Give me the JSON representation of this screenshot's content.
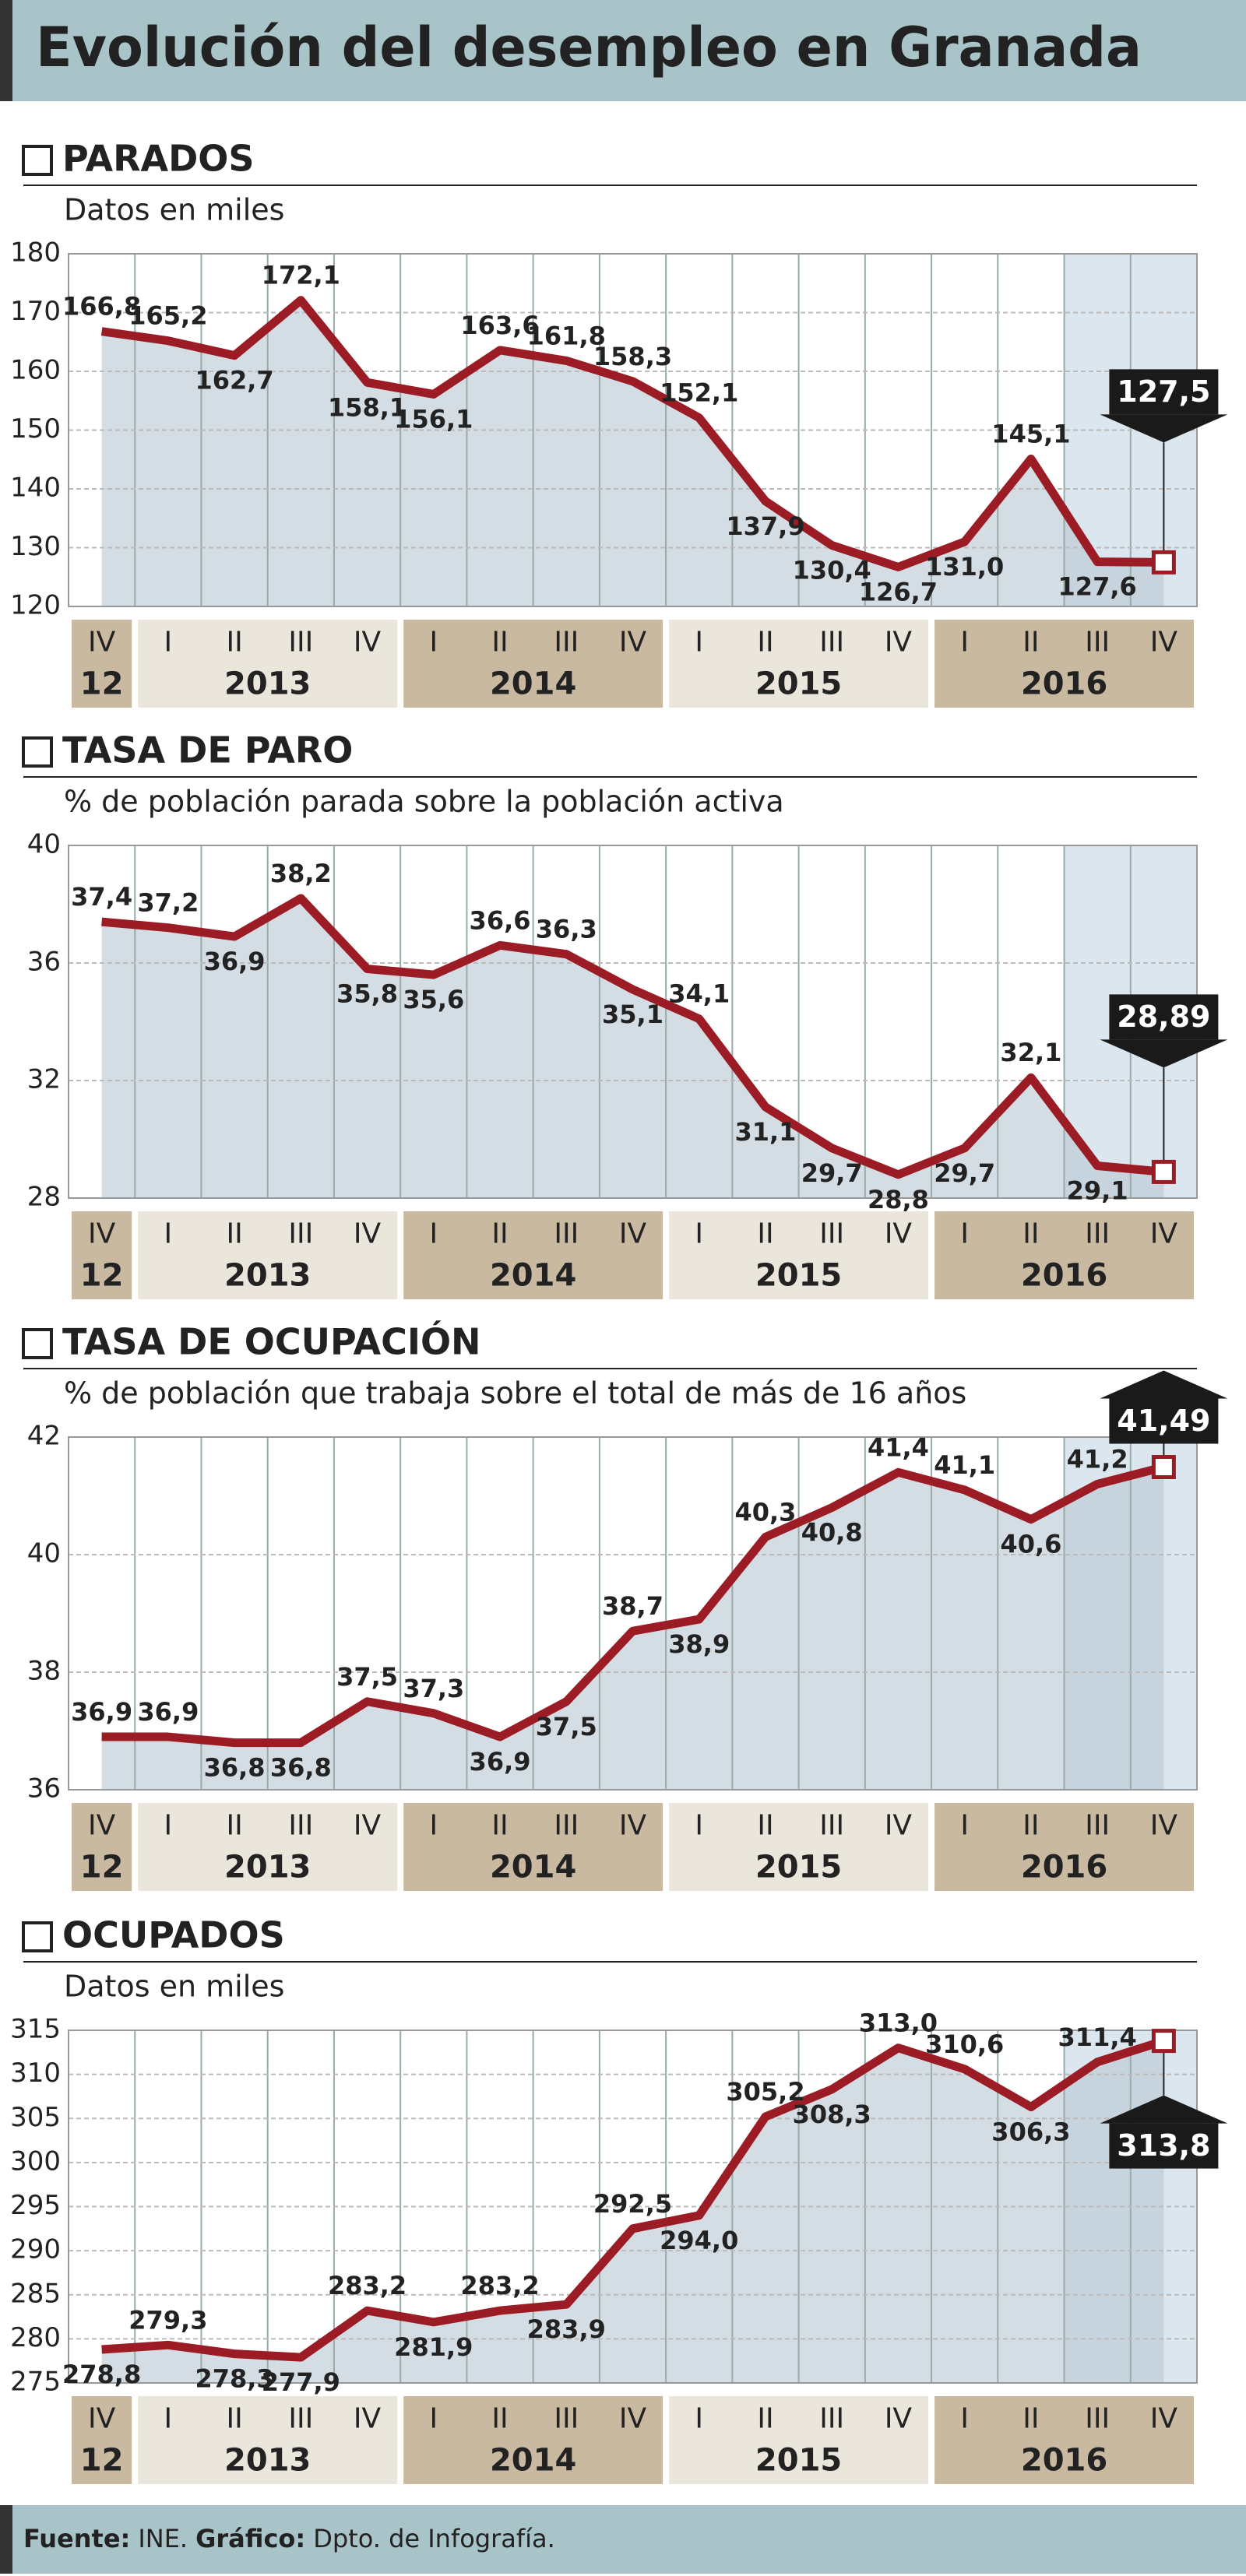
{
  "title": "Evolución del desempleo en Granada",
  "source": {
    "label": "Fuente:",
    "text": "INE.",
    "credit_label": "Gráfico:",
    "credit": "Dpto. de Infografía."
  },
  "chart_data": [
    {
      "type": "line",
      "title": "PARADOS",
      "subtitle": "Datos en miles",
      "categories": [
        "IV",
        "I",
        "II",
        "III",
        "IV",
        "I",
        "II",
        "III",
        "IV",
        "I",
        "II",
        "III",
        "IV",
        "I",
        "II",
        "III",
        "IV"
      ],
      "years": [
        "12",
        "2013",
        "2014",
        "2015",
        "2016"
      ],
      "values": [
        166.8,
        165.2,
        162.7,
        172.1,
        158.1,
        156.1,
        163.6,
        161.8,
        158.3,
        152.1,
        137.9,
        130.4,
        126.7,
        131.0,
        145.1,
        127.6,
        127.5
      ],
      "value_labels": [
        "166,8",
        "165,2",
        "162,7",
        "172,1",
        "158,1",
        "156,1",
        "163,6",
        "161,8",
        "158,3",
        "152,1",
        "137,9",
        "130,4",
        "126,7",
        "131,0",
        "145,1",
        "127,6",
        "127,5"
      ],
      "ylim": [
        120,
        180
      ],
      "yticks": [
        120,
        130,
        140,
        150,
        160,
        170,
        180
      ],
      "grid": true,
      "color": "#9b1c24"
    },
    {
      "type": "line",
      "title": "TASA DE PARO",
      "subtitle": "% de población parada sobre la población activa",
      "categories": [
        "IV",
        "I",
        "II",
        "III",
        "IV",
        "I",
        "II",
        "III",
        "IV",
        "I",
        "II",
        "III",
        "IV",
        "I",
        "II",
        "III",
        "IV"
      ],
      "years": [
        "12",
        "2013",
        "2014",
        "2015",
        "2016"
      ],
      "values": [
        37.4,
        37.2,
        36.9,
        38.2,
        35.8,
        35.6,
        36.6,
        36.3,
        35.1,
        34.1,
        31.1,
        29.7,
        28.8,
        29.7,
        32.1,
        29.1,
        28.89
      ],
      "value_labels": [
        "37,4",
        "37,2",
        "36,9",
        "38,2",
        "35,8",
        "35,6",
        "36,6",
        "36,3",
        "35,1",
        "34,1",
        "31,1",
        "29,7",
        "28,8",
        "29,7",
        "32,1",
        "29,1",
        "28,89"
      ],
      "ylim": [
        28,
        40
      ],
      "yticks": [
        28,
        32,
        36,
        40
      ],
      "grid": true,
      "color": "#9b1c24"
    },
    {
      "type": "line",
      "title": "TASA DE OCUPACIÓN",
      "subtitle": "% de población que trabaja sobre el total de más de 16 años",
      "categories": [
        "IV",
        "I",
        "II",
        "III",
        "IV",
        "I",
        "II",
        "III",
        "IV",
        "I",
        "II",
        "III",
        "IV",
        "I",
        "II",
        "III",
        "IV"
      ],
      "years": [
        "12",
        "2013",
        "2014",
        "2015",
        "2016"
      ],
      "values": [
        36.9,
        36.9,
        36.8,
        36.8,
        37.5,
        37.3,
        36.9,
        37.5,
        38.7,
        38.9,
        40.3,
        40.8,
        41.4,
        41.1,
        40.6,
        41.2,
        41.49
      ],
      "value_labels": [
        "36,9",
        "36,9",
        "36,8",
        "36,8",
        "37,5",
        "37,3",
        "36,9",
        "37,5",
        "38,7",
        "38,9",
        "40,3",
        "40,8",
        "41,4",
        "41,1",
        "40,6",
        "41,2",
        "41,49"
      ],
      "ylim": [
        36,
        42
      ],
      "yticks": [
        36,
        38,
        40,
        42
      ],
      "grid": true,
      "color": "#9b1c24"
    },
    {
      "type": "line",
      "title": "OCUPADOS",
      "subtitle": "Datos en miles",
      "categories": [
        "IV",
        "I",
        "II",
        "III",
        "IV",
        "I",
        "II",
        "III",
        "IV",
        "I",
        "II",
        "III",
        "IV",
        "I",
        "II",
        "III",
        "IV"
      ],
      "years": [
        "12",
        "2013",
        "2014",
        "2015",
        "2016"
      ],
      "values": [
        278.8,
        279.3,
        278.3,
        277.9,
        283.2,
        281.9,
        283.2,
        283.9,
        292.5,
        294.0,
        305.2,
        308.3,
        313.0,
        310.6,
        306.3,
        311.4,
        313.8
      ],
      "value_labels": [
        "278,8",
        "279,3",
        "278,3",
        "277,9",
        "283,2",
        "281,9",
        "283,2",
        "283,9",
        "292,5",
        "294,0",
        "305,2",
        "308,3",
        "313,0",
        "310,6",
        "306,3",
        "311,4",
        "313,8"
      ],
      "ylim": [
        275,
        315
      ],
      "yticks": [
        275,
        280,
        285,
        290,
        295,
        300,
        305,
        310,
        315
      ],
      "grid": true,
      "color": "#9b1c24"
    }
  ]
}
